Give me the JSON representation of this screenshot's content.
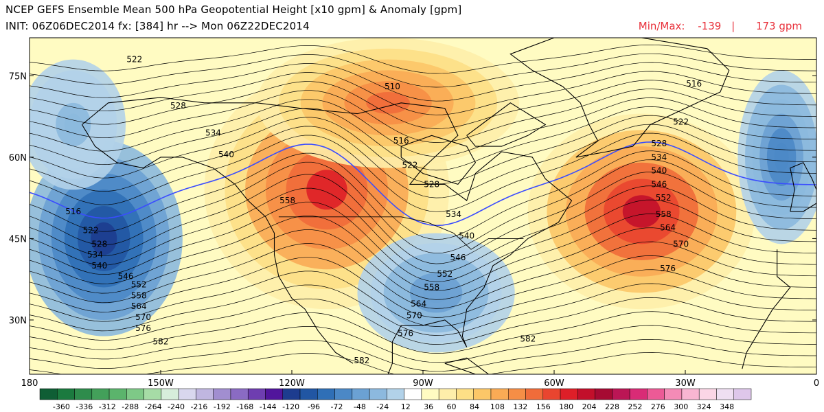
{
  "header": {
    "title": "NCEP GEFS Ensemble Mean 500 hPa Geopotential Height [x10 gpm] & Anomaly [gpm]",
    "init": "INIT: 06Z06DEC2014 fx: [384] hr --> Mon 06Z22DEC2014",
    "minmax_label": "Min/Max:",
    "min_value": "-139",
    "separator": "|",
    "max_value": "173 gpm"
  },
  "map": {
    "lat_labels": [
      "75N",
      "60N",
      "45N",
      "30N"
    ],
    "lon_labels": [
      "180",
      "150W",
      "120W",
      "90W",
      "60W",
      "30W",
      "0"
    ],
    "lat_values": [
      75,
      60,
      45,
      30
    ],
    "lon_values": [
      -180,
      -150,
      -120,
      -90,
      -60,
      -30,
      0
    ],
    "lat_range": [
      20,
      82
    ],
    "lon_range": [
      -180,
      0
    ],
    "colors": {
      "highlight_contour": "#3a4cff",
      "contour": "#000000",
      "coast": "#000000"
    },
    "contour_labels": [
      {
        "text": "522",
        "lon": -156,
        "lat": 78
      },
      {
        "text": "528",
        "lon": -146,
        "lat": 69.5
      },
      {
        "text": "534",
        "lon": -138,
        "lat": 64.5
      },
      {
        "text": "540",
        "lon": -135,
        "lat": 60.5
      },
      {
        "text": "558",
        "lon": -121,
        "lat": 52
      },
      {
        "text": "510",
        "lon": -97,
        "lat": 73
      },
      {
        "text": "516",
        "lon": -95,
        "lat": 63
      },
      {
        "text": "522",
        "lon": -93,
        "lat": 58.5
      },
      {
        "text": "528",
        "lon": -88,
        "lat": 55
      },
      {
        "text": "534",
        "lon": -83,
        "lat": 49.5
      },
      {
        "text": "540",
        "lon": -80,
        "lat": 45.5
      },
      {
        "text": "546",
        "lon": -82,
        "lat": 41.5
      },
      {
        "text": "552",
        "lon": -85,
        "lat": 38.5
      },
      {
        "text": "558",
        "lon": -88,
        "lat": 36
      },
      {
        "text": "564",
        "lon": -91,
        "lat": 33
      },
      {
        "text": "570",
        "lon": -92,
        "lat": 30.8
      },
      {
        "text": "576",
        "lon": -94,
        "lat": 27.5
      },
      {
        "text": "582",
        "lon": -104,
        "lat": 22.5
      },
      {
        "text": "582",
        "lon": -150,
        "lat": 26
      },
      {
        "text": "516",
        "lon": -170,
        "lat": 50
      },
      {
        "text": "522",
        "lon": -166,
        "lat": 46.5
      },
      {
        "text": "528",
        "lon": -164,
        "lat": 44
      },
      {
        "text": "534",
        "lon": -165,
        "lat": 42
      },
      {
        "text": "540",
        "lon": -164,
        "lat": 40
      },
      {
        "text": "546",
        "lon": -158,
        "lat": 38
      },
      {
        "text": "552",
        "lon": -155,
        "lat": 36.5
      },
      {
        "text": "558",
        "lon": -155,
        "lat": 34.5
      },
      {
        "text": "564",
        "lon": -155,
        "lat": 32.5
      },
      {
        "text": "570",
        "lon": -154,
        "lat": 30.5
      },
      {
        "text": "576",
        "lon": -154,
        "lat": 28.5
      },
      {
        "text": "516",
        "lon": -28,
        "lat": 73.5
      },
      {
        "text": "522",
        "lon": -31,
        "lat": 66.5
      },
      {
        "text": "528",
        "lon": -36,
        "lat": 62.5
      },
      {
        "text": "534",
        "lon": -36,
        "lat": 60
      },
      {
        "text": "540",
        "lon": -36,
        "lat": 57.5
      },
      {
        "text": "546",
        "lon": -36,
        "lat": 55
      },
      {
        "text": "552",
        "lon": -35,
        "lat": 52.5
      },
      {
        "text": "558",
        "lon": -35,
        "lat": 49.5
      },
      {
        "text": "564",
        "lon": -34,
        "lat": 47
      },
      {
        "text": "570",
        "lon": -31,
        "lat": 44
      },
      {
        "text": "576",
        "lon": -34,
        "lat": 39.5
      },
      {
        "text": "582",
        "lon": -66,
        "lat": 26.5
      }
    ],
    "anomaly_fields": [
      {
        "lon": -112,
        "lat": 54,
        "rx": 28,
        "ry": 22,
        "value": 150
      },
      {
        "lon": -98,
        "lat": 70,
        "rx": 30,
        "ry": 12,
        "value": 110
      },
      {
        "lon": -40,
        "lat": 50,
        "rx": 26,
        "ry": 18,
        "value": 165
      },
      {
        "lon": -163,
        "lat": 45,
        "rx": 18,
        "ry": 18,
        "value": -130
      },
      {
        "lon": -87,
        "lat": 35,
        "rx": 18,
        "ry": 11,
        "value": -60
      },
      {
        "lon": -8,
        "lat": 60,
        "rx": 10,
        "ry": 16,
        "value": -80
      },
      {
        "lon": -170,
        "lat": 66,
        "rx": 12,
        "ry": 12,
        "value": -30
      }
    ]
  },
  "legend": {
    "values": [
      "-360",
      "-336",
      "-312",
      "-288",
      "-264",
      "-240",
      "-216",
      "-192",
      "-168",
      "-144",
      "-120",
      "-96",
      "-72",
      "-48",
      "-24",
      "12",
      "36",
      "60",
      "84",
      "108",
      "132",
      "156",
      "180",
      "204",
      "228",
      "252",
      "276",
      "300",
      "324",
      "348"
    ],
    "colors": [
      "#0f5e35",
      "#1b7a3f",
      "#2e8c4c",
      "#43a05a",
      "#5bb46c",
      "#7ec987",
      "#a6dca6",
      "#d7eedb",
      "#d9d7ee",
      "#c0b6e0",
      "#a18ed0",
      "#8a6bc3",
      "#6e3eb0",
      "#51159c",
      "#1d3c8f",
      "#2156a3",
      "#2f6fb6",
      "#4b88c6",
      "#6ba1d3",
      "#8cb9de",
      "#b2d2e9",
      "#ffffff",
      "#fffbc2",
      "#feeeaa",
      "#fddf86",
      "#fcc768",
      "#faab55",
      "#f68e46",
      "#f06c3a",
      "#e9452f",
      "#de1f28",
      "#c20f2b",
      "#a60a33",
      "#bb1655",
      "#d92b76",
      "#ec5a96",
      "#f48bb6",
      "#f8b6d2",
      "#fbd6e6",
      "#efdff2",
      "#dec7ea"
    ]
  }
}
